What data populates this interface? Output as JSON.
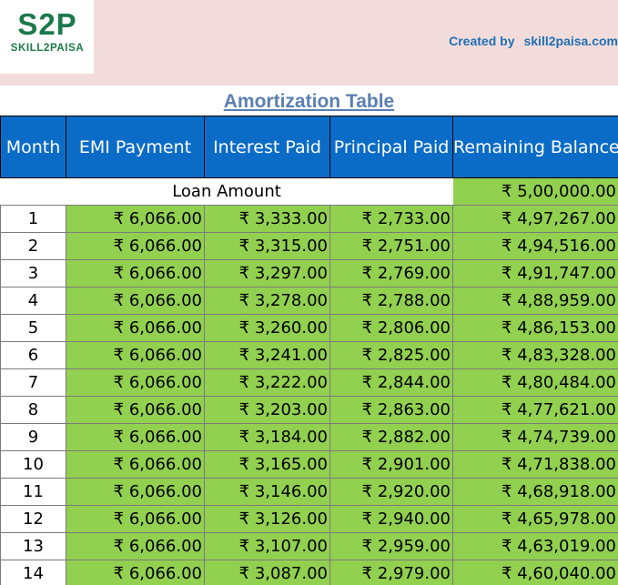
{
  "brand": {
    "logo_mark": "S2P",
    "logo_text": "SKILL2PAISA",
    "credit_label": "Created by",
    "credit_site": "skill2paisa.com"
  },
  "title": "Amortization Table",
  "table": {
    "headers": [
      "Month",
      "EMI Payment",
      "Interest Paid",
      "Principal Paid",
      "Remaining Balance"
    ],
    "loan_amount_label": "Loan Amount",
    "loan_amount_value": "₹ 5,00,000.00",
    "rows": [
      {
        "month": "1",
        "emi": "₹ 6,066.00",
        "interest": "₹ 3,333.00",
        "principal": "₹ 2,733.00",
        "balance": "₹ 4,97,267.00"
      },
      {
        "month": "2",
        "emi": "₹ 6,066.00",
        "interest": "₹ 3,315.00",
        "principal": "₹ 2,751.00",
        "balance": "₹ 4,94,516.00"
      },
      {
        "month": "3",
        "emi": "₹ 6,066.00",
        "interest": "₹ 3,297.00",
        "principal": "₹ 2,769.00",
        "balance": "₹ 4,91,747.00"
      },
      {
        "month": "4",
        "emi": "₹ 6,066.00",
        "interest": "₹ 3,278.00",
        "principal": "₹ 2,788.00",
        "balance": "₹ 4,88,959.00"
      },
      {
        "month": "5",
        "emi": "₹ 6,066.00",
        "interest": "₹ 3,260.00",
        "principal": "₹ 2,806.00",
        "balance": "₹ 4,86,153.00"
      },
      {
        "month": "6",
        "emi": "₹ 6,066.00",
        "interest": "₹ 3,241.00",
        "principal": "₹ 2,825.00",
        "balance": "₹ 4,83,328.00"
      },
      {
        "month": "7",
        "emi": "₹ 6,066.00",
        "interest": "₹ 3,222.00",
        "principal": "₹ 2,844.00",
        "balance": "₹ 4,80,484.00"
      },
      {
        "month": "8",
        "emi": "₹ 6,066.00",
        "interest": "₹ 3,203.00",
        "principal": "₹ 2,863.00",
        "balance": "₹ 4,77,621.00"
      },
      {
        "month": "9",
        "emi": "₹ 6,066.00",
        "interest": "₹ 3,184.00",
        "principal": "₹ 2,882.00",
        "balance": "₹ 4,74,739.00"
      },
      {
        "month": "10",
        "emi": "₹ 6,066.00",
        "interest": "₹ 3,165.00",
        "principal": "₹ 2,901.00",
        "balance": "₹ 4,71,838.00"
      },
      {
        "month": "11",
        "emi": "₹ 6,066.00",
        "interest": "₹ 3,146.00",
        "principal": "₹ 2,920.00",
        "balance": "₹ 4,68,918.00"
      },
      {
        "month": "12",
        "emi": "₹ 6,066.00",
        "interest": "₹ 3,126.00",
        "principal": "₹ 2,940.00",
        "balance": "₹ 4,65,978.00"
      },
      {
        "month": "13",
        "emi": "₹ 6,066.00",
        "interest": "₹ 3,107.00",
        "principal": "₹ 2,959.00",
        "balance": "₹ 4,63,019.00"
      },
      {
        "month": "14",
        "emi": "₹ 6,066.00",
        "interest": "₹ 3,087.00",
        "principal": "₹ 2,979.00",
        "balance": "₹ 4,60,040.00"
      }
    ]
  },
  "colors": {
    "header_band": "#f2dcdb",
    "brand_green": "#1c7a4a",
    "credit_blue": "#1f6fb5",
    "title_blue": "#5b7fb3",
    "table_header": "#0b6cc8",
    "cell_green": "#92d050"
  }
}
